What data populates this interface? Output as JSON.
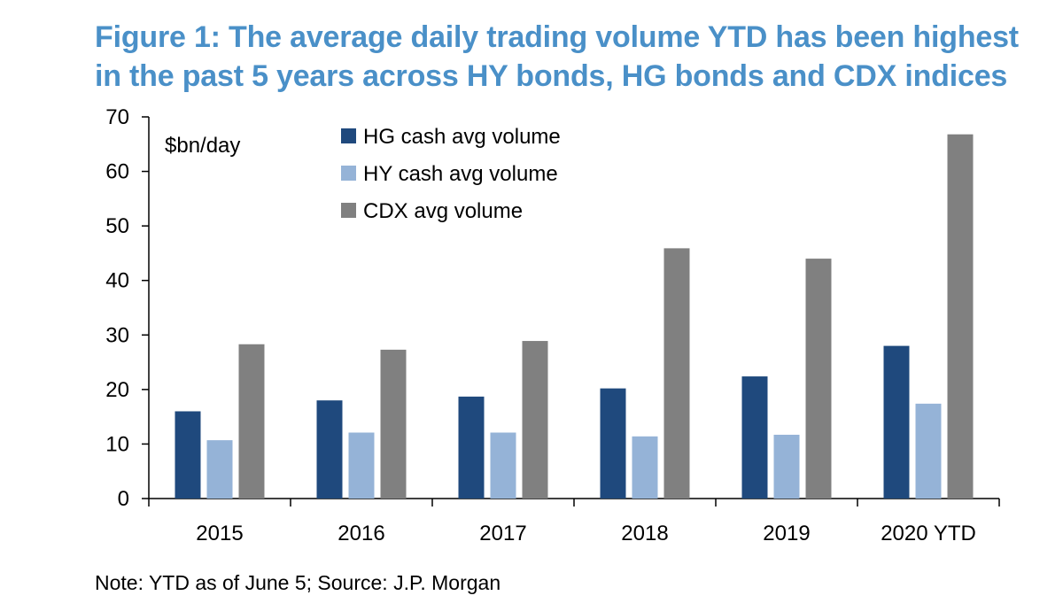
{
  "title": "Figure 1: The average daily trading volume YTD has been highest in the past 5 years across HY bonds, HG bonds and CDX indices",
  "note": "Note: YTD as of June 5; Source: J.P. Morgan",
  "chart_data": {
    "type": "bar",
    "categories": [
      "2015",
      "2016",
      "2017",
      "2018",
      "2019",
      "2020 YTD"
    ],
    "series": [
      {
        "name": "HG cash avg volume",
        "color": "#1f497d",
        "values": [
          16,
          18,
          18.7,
          20.2,
          22.4,
          28
        ]
      },
      {
        "name": "HY cash avg volume",
        "color": "#95b3d7",
        "values": [
          10.7,
          12.1,
          12.1,
          11.4,
          11.7,
          17.4
        ]
      },
      {
        "name": "CDX avg volume",
        "color": "#808080",
        "values": [
          28.3,
          27.3,
          28.9,
          45.9,
          44,
          66.8
        ]
      }
    ],
    "ylim": [
      0,
      70
    ],
    "yticks": [
      0,
      10,
      20,
      30,
      40,
      50,
      60,
      70
    ],
    "unit_label": "$bn/day",
    "xlabel": "",
    "ylabel": "",
    "grid": false,
    "legend_position": "top-left"
  }
}
